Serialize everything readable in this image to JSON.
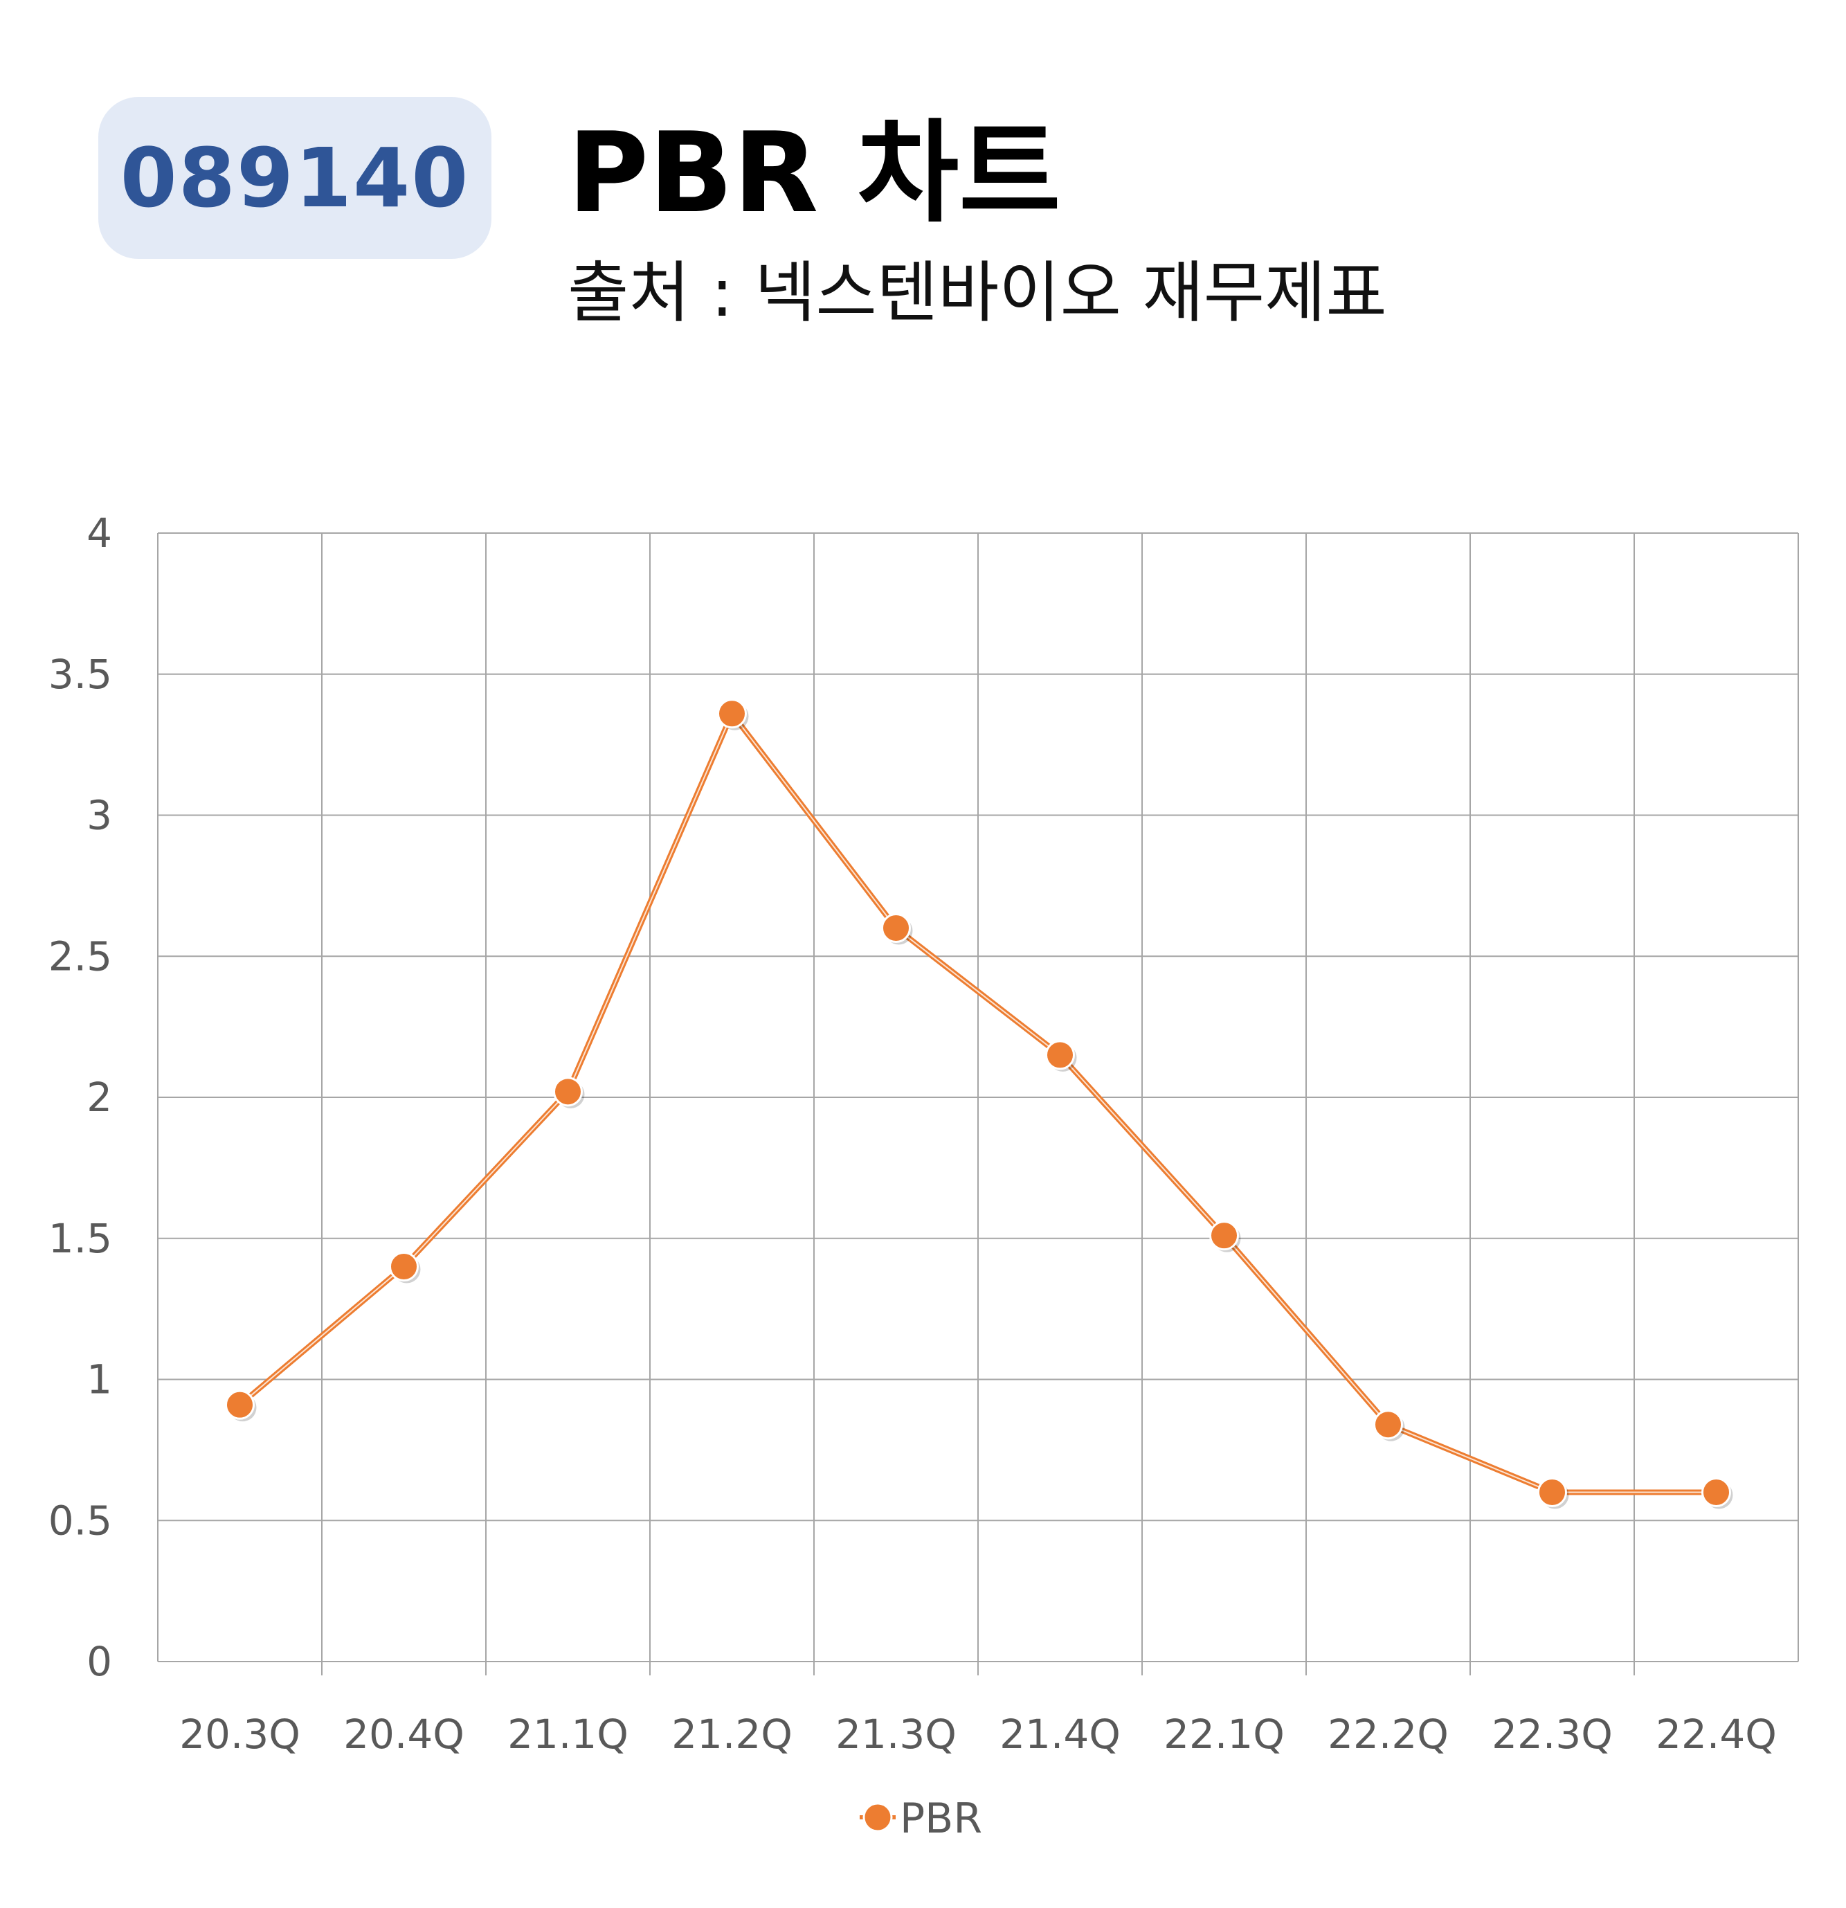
{
  "header": {
    "code": "089140",
    "title": "PBR 차트",
    "subtitle": "출처 : 넥스텐바이오 재무제표"
  },
  "chart_data": {
    "type": "line",
    "categories": [
      "20.3Q",
      "20.4Q",
      "21.1Q",
      "21.2Q",
      "21.3Q",
      "21.4Q",
      "22.1Q",
      "22.2Q",
      "22.3Q",
      "22.4Q"
    ],
    "series": [
      {
        "name": "PBR",
        "values": [
          0.91,
          1.4,
          2.02,
          3.36,
          2.6,
          2.15,
          1.51,
          0.84,
          0.6,
          0.6
        ]
      }
    ],
    "ylim": [
      0,
      4
    ],
    "yticks": [
      "0",
      "0.5",
      "1",
      "1.5",
      "2",
      "2.5",
      "3",
      "3.5",
      "4"
    ],
    "grid": true,
    "legend": "bottom-center",
    "colors": {
      "series": "#ed7d31",
      "grid": "#a6a6a6",
      "tick_label": "#595959"
    }
  }
}
